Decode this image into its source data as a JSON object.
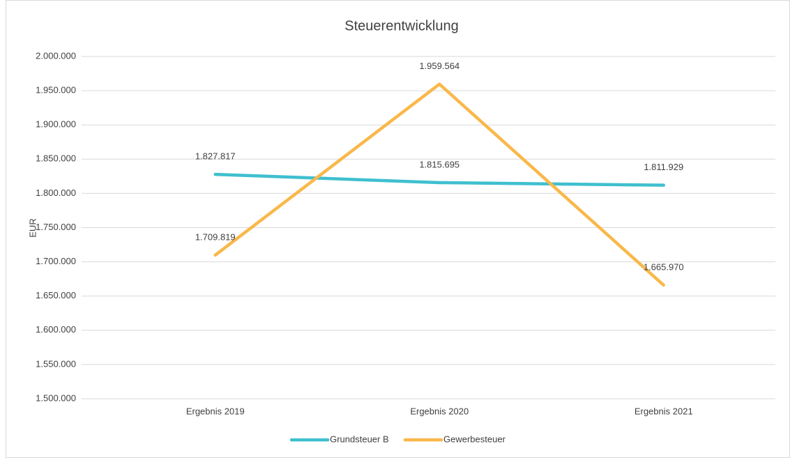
{
  "chart_data": {
    "type": "line",
    "title": "Steuerentwicklung",
    "y_label": "EUR",
    "categories": [
      "Ergebnis 2019",
      "Ergebnis 2020",
      "Ergebnis 2021"
    ],
    "series": [
      {
        "name": "Grundsteuer B",
        "color": "#3fbfcf",
        "values": [
          1827817,
          1815695,
          1811929
        ],
        "value_labels": [
          "1.827.817",
          "1.815.695",
          "1.811.929"
        ]
      },
      {
        "name": "Gewerbesteuer",
        "color": "#f9b84a",
        "values": [
          1709819,
          1959564,
          1665970
        ],
        "value_labels": [
          "1.709.819",
          "1.959.564",
          "1.665.970"
        ]
      }
    ],
    "ylim": [
      1500000,
      2000000
    ],
    "yticks": [
      {
        "value": 1500000,
        "label": "1.500.000"
      },
      {
        "value": 1550000,
        "label": "1.550.000"
      },
      {
        "value": 1600000,
        "label": "1.600.000"
      },
      {
        "value": 1650000,
        "label": "1.650.000"
      },
      {
        "value": 1700000,
        "label": "1.700.000"
      },
      {
        "value": 1750000,
        "label": "1.750.000"
      },
      {
        "value": 1800000,
        "label": "1.800.000"
      },
      {
        "value": 1850000,
        "label": "1.850.000"
      },
      {
        "value": 1900000,
        "label": "1.900.000"
      },
      {
        "value": 1950000,
        "label": "1.950.000"
      },
      {
        "value": 2000000,
        "label": "2.000.000"
      }
    ],
    "grid": true,
    "legend": "bottom"
  }
}
